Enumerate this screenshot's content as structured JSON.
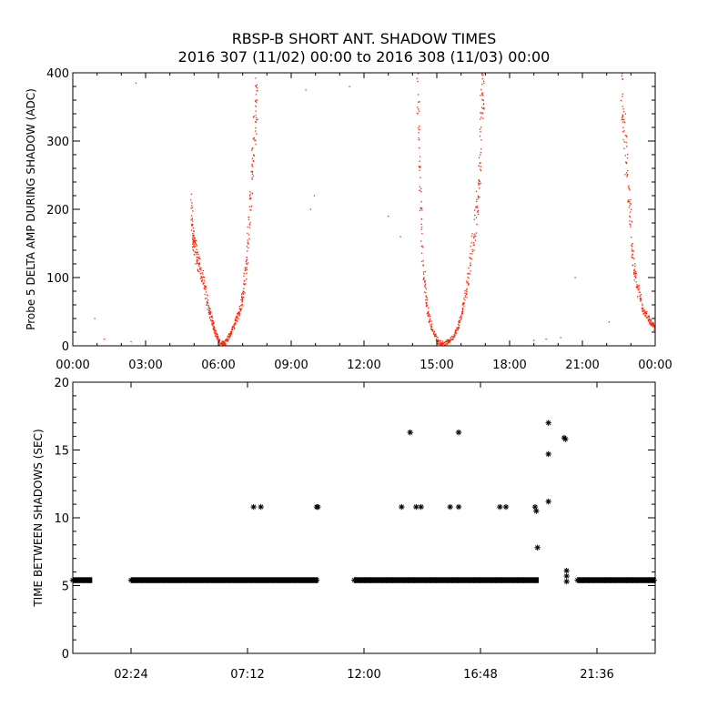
{
  "title_line1": "RBSP-B SHORT ANT. SHADOW TIMES",
  "title_line2": "2016 307 (11/02) 00:00 to 2016 308 (11/03) 00:00",
  "colors": {
    "amp_points": "#ff2200",
    "gap_points": "#000000",
    "axes": "#000000"
  },
  "chart_data": [
    {
      "type": "scatter",
      "xlabel": "",
      "ylabel": "Probe 5 DELTA AMP DURING SHADOW (ADC)",
      "x_unit": "hours",
      "xlim": [
        0,
        24
      ],
      "ylim": [
        0,
        400
      ],
      "xticks": [
        0,
        3,
        6,
        9,
        12,
        15,
        18,
        21,
        24
      ],
      "xtick_labels": [
        "00:00",
        "03:00",
        "06:00",
        "09:00",
        "12:00",
        "15:00",
        "18:00",
        "21:00",
        "00:00"
      ],
      "yticks": [
        0,
        100,
        200,
        300,
        400
      ],
      "ytick_labels": [
        "0",
        "100",
        "200",
        "300",
        "400"
      ],
      "series_shape": [
        {
          "x": 4.88,
          "y": 200
        },
        {
          "x": 4.95,
          "y": 160
        },
        {
          "x": 5.05,
          "y": 140
        },
        {
          "x": 5.2,
          "y": 120
        },
        {
          "x": 5.4,
          "y": 90
        },
        {
          "x": 5.6,
          "y": 55
        },
        {
          "x": 5.75,
          "y": 35
        },
        {
          "x": 5.9,
          "y": 18
        },
        {
          "x": 6.05,
          "y": 4
        },
        {
          "x": 6.3,
          "y": 5
        },
        {
          "x": 6.5,
          "y": 18
        },
        {
          "x": 6.7,
          "y": 35
        },
        {
          "x": 6.9,
          "y": 55
        },
        {
          "x": 7.05,
          "y": 80
        },
        {
          "x": 7.2,
          "y": 140
        },
        {
          "x": 7.35,
          "y": 230
        },
        {
          "x": 7.5,
          "y": 320
        },
        {
          "x": 7.6,
          "y": 380
        },
        {
          "x": 14.2,
          "y": 400
        },
        {
          "x": 14.3,
          "y": 250
        },
        {
          "x": 14.45,
          "y": 110
        },
        {
          "x": 14.6,
          "y": 55
        },
        {
          "x": 14.8,
          "y": 25
        },
        {
          "x": 15.05,
          "y": 6
        },
        {
          "x": 15.35,
          "y": 3
        },
        {
          "x": 15.6,
          "y": 10
        },
        {
          "x": 15.85,
          "y": 25
        },
        {
          "x": 16.05,
          "y": 50
        },
        {
          "x": 16.3,
          "y": 100
        },
        {
          "x": 16.55,
          "y": 170
        },
        {
          "x": 16.75,
          "y": 230
        },
        {
          "x": 16.85,
          "y": 360
        },
        {
          "x": 16.95,
          "y": 400
        },
        {
          "x": 22.6,
          "y": 400
        },
        {
          "x": 22.75,
          "y": 300
        },
        {
          "x": 22.95,
          "y": 200
        },
        {
          "x": 23.1,
          "y": 120
        },
        {
          "x": 23.3,
          "y": 80
        },
        {
          "x": 23.55,
          "y": 50
        },
        {
          "x": 23.8,
          "y": 35
        },
        {
          "x": 24,
          "y": 25
        }
      ],
      "scattered_points": [
        {
          "x": 0.9,
          "y": 40
        },
        {
          "x": 1.3,
          "y": 10
        },
        {
          "x": 2.4,
          "y": 6
        },
        {
          "x": 2.6,
          "y": 385
        },
        {
          "x": 9.8,
          "y": 200
        },
        {
          "x": 9.95,
          "y": 220
        },
        {
          "x": 9.6,
          "y": 375
        },
        {
          "x": 11.4,
          "y": 380
        },
        {
          "x": 13.0,
          "y": 190
        },
        {
          "x": 13.5,
          "y": 160
        },
        {
          "x": 19.0,
          "y": 8
        },
        {
          "x": 19.5,
          "y": 10
        },
        {
          "x": 20.1,
          "y": 12
        },
        {
          "x": 20.7,
          "y": 100
        },
        {
          "x": 22.1,
          "y": 35
        }
      ]
    },
    {
      "type": "scatter",
      "xlabel": "",
      "ylabel": "TIME BETWEEN SHADOWS (SEC)",
      "x_unit": "hours",
      "xlim": [
        0,
        24
      ],
      "ylim": [
        0,
        20
      ],
      "xticks": [
        2.4,
        7.2,
        12.0,
        16.8,
        21.6
      ],
      "xtick_labels": [
        "02:24",
        "07:12",
        "12:00",
        "16:48",
        "21:36"
      ],
      "yticks": [
        0,
        5,
        10,
        15,
        20
      ],
      "ytick_labels": [
        "0",
        "5",
        "10",
        "15",
        "20"
      ],
      "baseline_y": 5.4,
      "baseline_runs": [
        [
          0.0,
          0.8
        ],
        [
          2.4,
          10.1
        ],
        [
          11.6,
          19.2
        ],
        [
          20.8,
          24.0
        ]
      ],
      "outlier_points": [
        {
          "x": 7.45,
          "y": 10.8
        },
        {
          "x": 7.75,
          "y": 10.8
        },
        {
          "x": 10.05,
          "y": 10.8
        },
        {
          "x": 10.1,
          "y": 10.8
        },
        {
          "x": 13.55,
          "y": 10.8
        },
        {
          "x": 13.9,
          "y": 16.3
        },
        {
          "x": 14.15,
          "y": 10.8
        },
        {
          "x": 14.35,
          "y": 10.8
        },
        {
          "x": 15.55,
          "y": 10.8
        },
        {
          "x": 15.9,
          "y": 16.3
        },
        {
          "x": 15.9,
          "y": 10.8
        },
        {
          "x": 17.6,
          "y": 10.8
        },
        {
          "x": 17.85,
          "y": 10.8
        },
        {
          "x": 19.05,
          "y": 10.8
        },
        {
          "x": 19.1,
          "y": 10.5
        },
        {
          "x": 19.15,
          "y": 7.8
        },
        {
          "x": 19.6,
          "y": 17.0
        },
        {
          "x": 19.6,
          "y": 14.7
        },
        {
          "x": 19.6,
          "y": 11.2
        },
        {
          "x": 20.25,
          "y": 15.9
        },
        {
          "x": 20.3,
          "y": 15.8
        },
        {
          "x": 20.35,
          "y": 6.1
        },
        {
          "x": 20.35,
          "y": 5.7
        },
        {
          "x": 20.35,
          "y": 5.3
        }
      ]
    }
  ]
}
